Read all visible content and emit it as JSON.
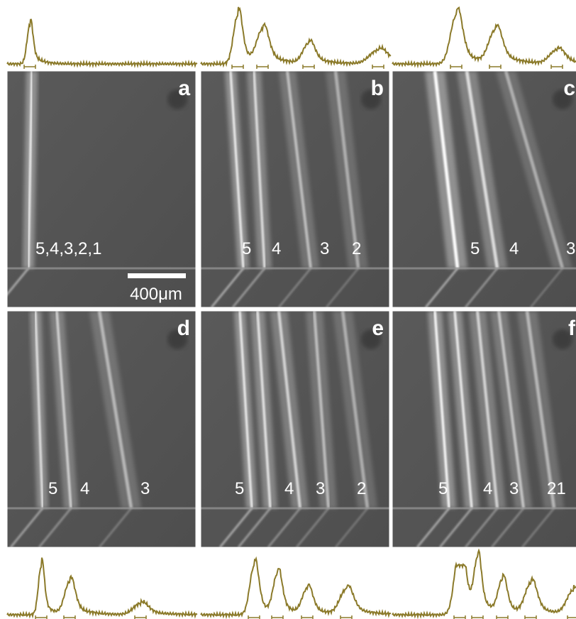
{
  "panels": [
    {
      "letter": "a",
      "beams": [
        "5,4,3,2,1"
      ]
    },
    {
      "letter": "b",
      "beams": [
        "5",
        "4",
        "3",
        "2"
      ]
    },
    {
      "letter": "c",
      "beams": [
        "5",
        "4",
        "3"
      ]
    },
    {
      "letter": "d",
      "beams": [
        "5",
        "4",
        "3"
      ]
    },
    {
      "letter": "e",
      "beams": [
        "5",
        "4",
        "3",
        "2"
      ]
    },
    {
      "letter": "f",
      "beams": [
        "5",
        "4",
        "3",
        "21"
      ]
    }
  ],
  "scale_bar": "400μm"
}
